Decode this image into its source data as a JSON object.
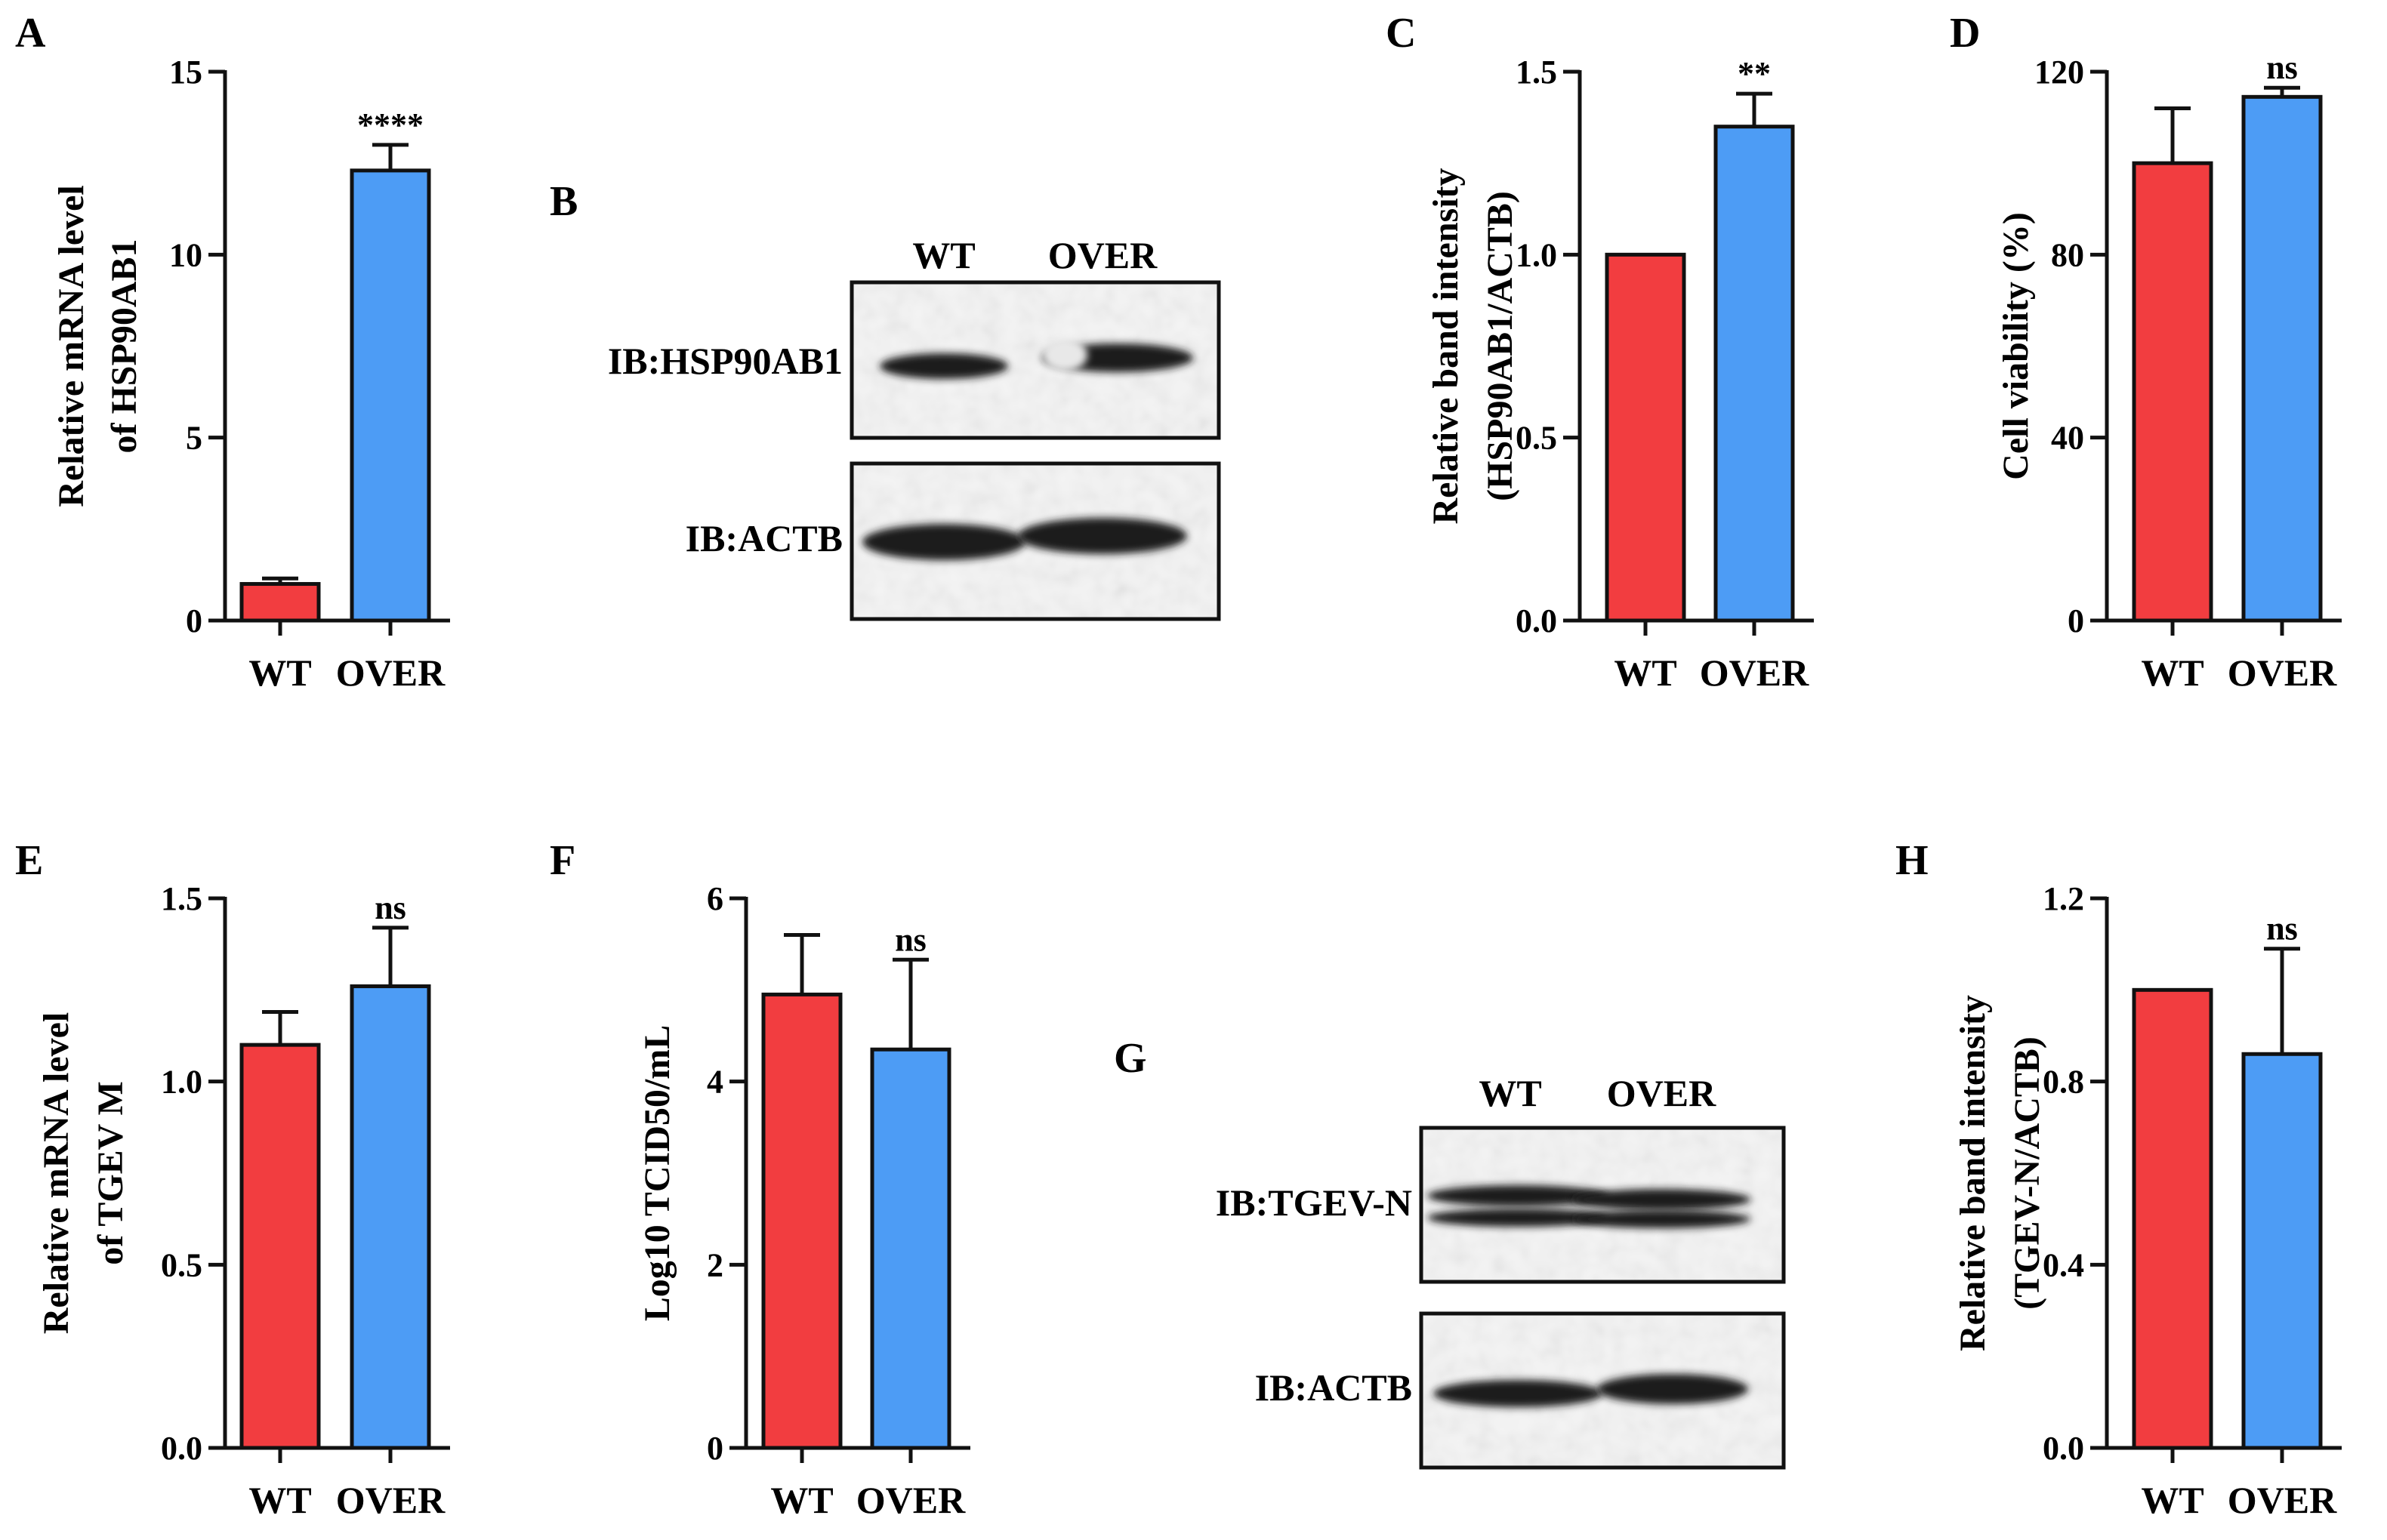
{
  "colors": {
    "wt": "#f23d40",
    "over": "#4d9cf5",
    "axis": "#111111"
  },
  "chart_data": [
    {
      "panel": "A",
      "type": "bar",
      "categories": [
        "WT",
        "OVER"
      ],
      "values": [
        1.0,
        12.3
      ],
      "errors": [
        0.15,
        0.7
      ],
      "ylim": [
        0,
        15
      ],
      "yticks": [
        "0",
        "5",
        "10",
        "15"
      ],
      "ylabel_lines": [
        "Relative mRNA level",
        "of HSP90AB1"
      ],
      "significance": "****",
      "grid": false
    },
    {
      "panel": "C",
      "type": "bar",
      "categories": [
        "WT",
        "OVER"
      ],
      "values": [
        1.0,
        1.35
      ],
      "errors": [
        0,
        0.09
      ],
      "ylim": [
        0,
        1.5
      ],
      "yticks": [
        "0.0",
        "0.5",
        "1.0",
        "1.5"
      ],
      "ylabel_lines": [
        "Relative band intensity",
        "(HSP90AB1/ACTB)"
      ],
      "significance": "**",
      "grid": false
    },
    {
      "panel": "D",
      "type": "bar",
      "categories": [
        "WT",
        "OVER"
      ],
      "values": [
        100,
        114.5
      ],
      "errors": [
        12,
        2
      ],
      "ylim": [
        0,
        120
      ],
      "yticks": [
        "0",
        "40",
        "80",
        "120"
      ],
      "ylabel_lines": [
        "Cell viability (%)"
      ],
      "significance": "ns",
      "grid": false
    },
    {
      "panel": "E",
      "type": "bar",
      "categories": [
        "WT",
        "OVER"
      ],
      "values": [
        1.1,
        1.26
      ],
      "errors": [
        0.09,
        0.16
      ],
      "ylim": [
        0,
        1.5
      ],
      "yticks": [
        "0.0",
        "0.5",
        "1.0",
        "1.5"
      ],
      "ylabel_lines": [
        "Relative mRNA level",
        "of TGEV M"
      ],
      "significance": "ns",
      "grid": false
    },
    {
      "panel": "F",
      "type": "bar",
      "categories": [
        "WT",
        "OVER"
      ],
      "values": [
        4.95,
        4.35
      ],
      "errors": [
        0.65,
        0.98
      ],
      "ylim": [
        0,
        6
      ],
      "yticks": [
        "0",
        "2",
        "4",
        "6"
      ],
      "ylabel_lines": [
        "Log10 TCID50/mL"
      ],
      "significance": "ns",
      "grid": false
    },
    {
      "panel": "H",
      "type": "bar",
      "categories": [
        "WT",
        "OVER"
      ],
      "values": [
        1.0,
        0.86
      ],
      "errors": [
        0,
        0.23
      ],
      "ylim": [
        0,
        1.2
      ],
      "yticks": [
        "0.0",
        "0.4",
        "0.8",
        "1.2"
      ],
      "ylabel_lines": [
        "Relative band intensity",
        "(TGEV-N/ACTB)"
      ],
      "significance": "ns",
      "grid": false
    }
  ],
  "blots": [
    {
      "panel": "B",
      "lanes": [
        "WT",
        "OVER"
      ],
      "rows": [
        {
          "label": "IB:HSP90AB1"
        },
        {
          "label": "IB:ACTB"
        }
      ]
    },
    {
      "panel": "G",
      "lanes": [
        "WT",
        "OVER"
      ],
      "rows": [
        {
          "label": "IB:TGEV-N"
        },
        {
          "label": "IB:ACTB"
        }
      ]
    }
  ]
}
